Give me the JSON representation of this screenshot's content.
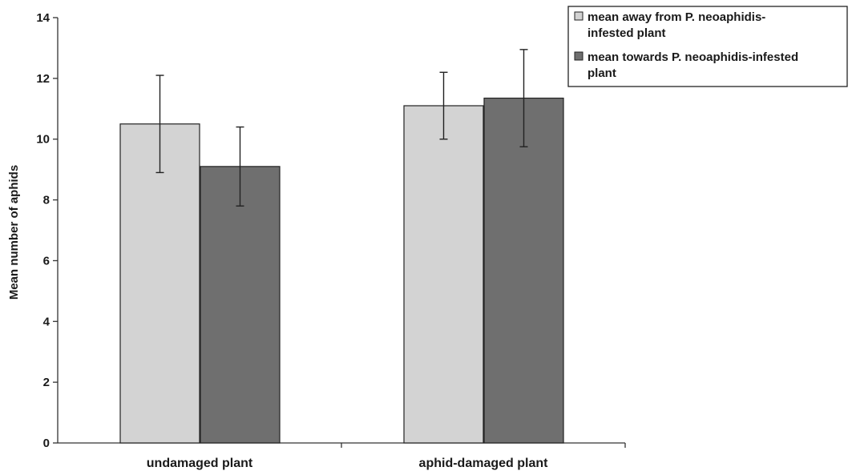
{
  "chart_data": {
    "type": "bar",
    "categories": [
      "undamaged plant",
      "aphid-damaged plant"
    ],
    "series": [
      {
        "name": "mean away from P. neoaphidis-infested plant",
        "legend_lines": [
          "mean away from P. neoaphidis-",
          "infested plant"
        ],
        "values": [
          10.5,
          11.1
        ],
        "error": [
          1.6,
          1.1
        ],
        "color": "#d3d3d3"
      },
      {
        "name": "mean towards P. neoaphidis-infested plant",
        "legend_lines": [
          "mean towards P. neoaphidis-infested",
          "plant"
        ],
        "values": [
          9.1,
          11.35
        ],
        "error": [
          1.3,
          1.6
        ],
        "color": "#6f6f6f"
      }
    ],
    "ylabel": "Mean number of aphids",
    "xlabel": "",
    "title": "",
    "ylim": [
      0,
      14
    ],
    "yticks": [
      "0",
      "2",
      "4",
      "6",
      "8",
      "10",
      "12",
      "14"
    ],
    "grid": false,
    "legend_position": "top-right"
  }
}
